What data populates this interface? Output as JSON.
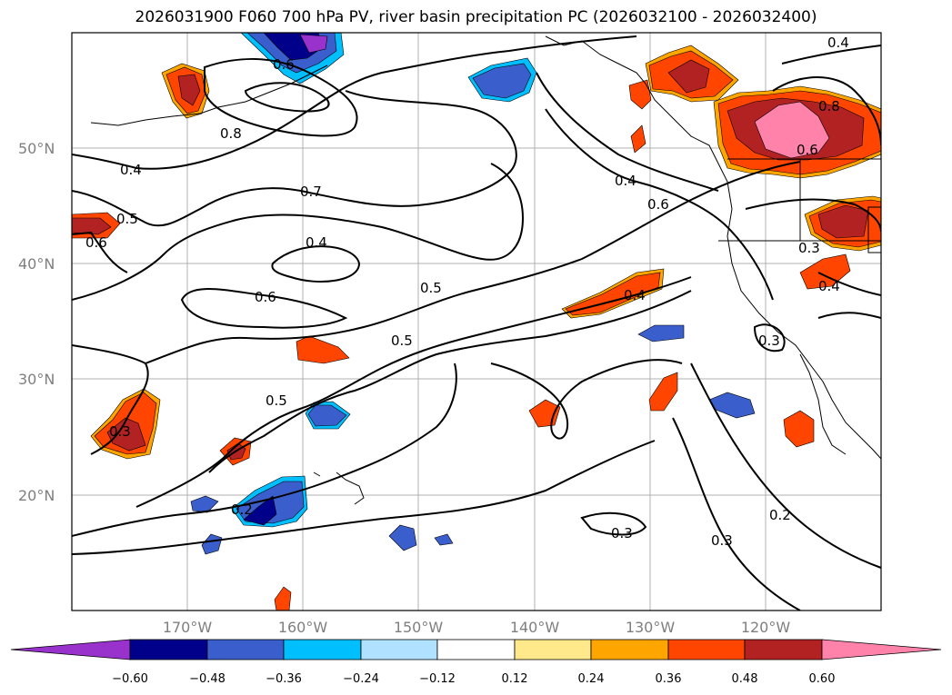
{
  "title": "2026031900 F060 700 hPa PV, river basin precipitation PC (2026032100 - 2026032400)",
  "latitude_labels": [
    "50°N",
    "40°N",
    "30°N",
    "20°N"
  ],
  "longitude_labels": [
    "170°W",
    "160°W",
    "150°W",
    "140°W",
    "130°W",
    "120°W"
  ],
  "colorbar": {
    "ticks": [
      "−0.60",
      "−0.48",
      "−0.36",
      "−0.24",
      "−0.12",
      "0.12",
      "0.24",
      "0.36",
      "0.48",
      "0.60"
    ],
    "colors": {
      "under": "#9932cc",
      "b1": "#00008b",
      "b2": "#3a5fcd",
      "b3": "#00bfff",
      "b4": "#b0e2ff",
      "neutral": "#ffffff",
      "p1": "#ffe98a",
      "p2": "#ffa500",
      "p3": "#ff4500",
      "p4": "#b22222",
      "over": "#ff82ab"
    }
  },
  "contour_labels": {
    "c1": "0.4",
    "c2": "0.5",
    "c3": "0.6",
    "c4": "0.8",
    "c5": "0.6",
    "c6": "0.7",
    "c7": "0.4",
    "c8": "0.6",
    "c9": "0.5",
    "c10": "0.5",
    "c11": "0.5",
    "c12": "0.3",
    "c13": "0.2",
    "c14": "0.3",
    "c15": "0.2",
    "c16": "0.3",
    "c17": "0.4",
    "c18": "0.6",
    "c19": "0.4",
    "c20": "0.4",
    "c21": "0.8",
    "c22": "0.6",
    "c23": "0.3",
    "c24": "0.4",
    "c25": "0.3"
  }
}
